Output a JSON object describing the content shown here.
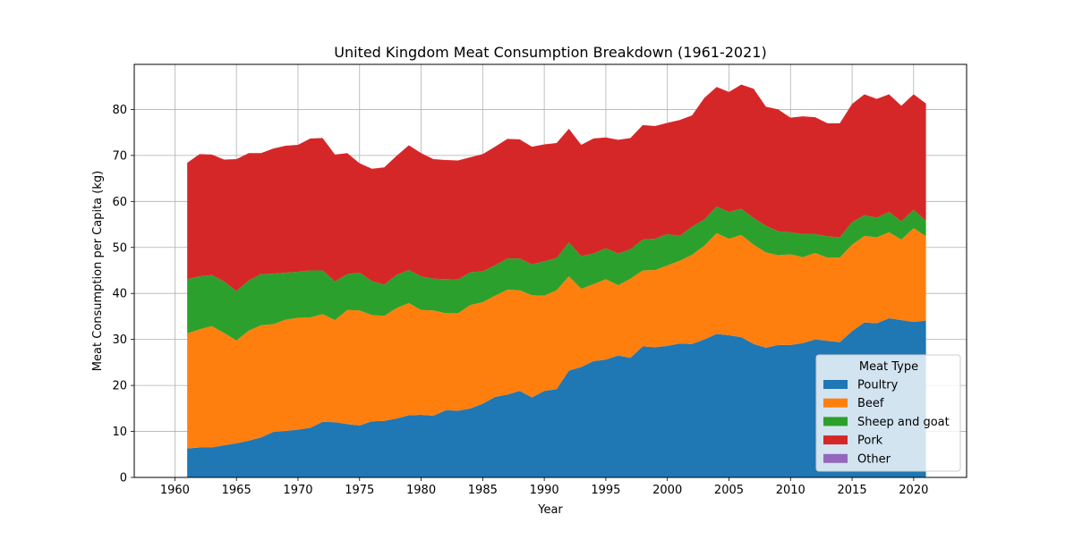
{
  "chart_data": {
    "type": "area",
    "stacked": true,
    "title": "United Kingdom Meat Consumption Breakdown (1961-2021)",
    "xlabel": "Year",
    "ylabel": "Meat Consumption per Capita (kg)",
    "xlim": [
      1956.7,
      2024.3
    ],
    "ylim": [
      0,
      89.8
    ],
    "xticks": [
      1960,
      1965,
      1970,
      1975,
      1980,
      1985,
      1990,
      1995,
      2000,
      2005,
      2010,
      2015,
      2020
    ],
    "yticks": [
      0,
      10,
      20,
      30,
      40,
      50,
      60,
      70,
      80
    ],
    "grid": true,
    "legend": {
      "title": "Meat Type",
      "placement": "lower-right"
    },
    "x": [
      1961,
      1962,
      1963,
      1964,
      1965,
      1966,
      1967,
      1968,
      1969,
      1970,
      1971,
      1972,
      1973,
      1974,
      1975,
      1976,
      1977,
      1978,
      1979,
      1980,
      1981,
      1982,
      1983,
      1984,
      1985,
      1986,
      1987,
      1988,
      1989,
      1990,
      1991,
      1992,
      1993,
      1994,
      1995,
      1996,
      1997,
      1998,
      1999,
      2000,
      2001,
      2002,
      2003,
      2004,
      2005,
      2006,
      2007,
      2008,
      2009,
      2010,
      2011,
      2012,
      2013,
      2014,
      2015,
      2016,
      2017,
      2018,
      2019,
      2020,
      2021
    ],
    "series": [
      {
        "name": "Poultry",
        "color": "#1f77b4",
        "values": [
          6.3,
          6.5,
          6.5,
          7.0,
          7.4,
          8.0,
          8.7,
          9.9,
          10.1,
          10.4,
          10.8,
          12.1,
          12.0,
          11.6,
          11.3,
          12.2,
          12.3,
          12.8,
          13.5,
          13.6,
          13.4,
          14.6,
          14.5,
          15.0,
          16.0,
          17.5,
          18.0,
          18.8,
          17.4,
          18.8,
          19.2,
          23.2,
          24.0,
          25.3,
          25.6,
          26.5,
          26.0,
          28.5,
          28.3,
          28.6,
          29.1,
          29.0,
          30.0,
          31.2,
          30.9,
          30.5,
          29.0,
          28.2,
          28.8,
          28.8,
          29.2,
          30.0,
          29.7,
          29.4,
          31.8,
          33.7,
          33.5,
          34.6,
          34.2,
          33.8,
          34.1
        ]
      },
      {
        "name": "Beef",
        "color": "#ff7f0e",
        "values": [
          25.0,
          25.7,
          26.4,
          24.4,
          22.4,
          23.9,
          24.4,
          23.4,
          24.2,
          24.3,
          24.0,
          23.4,
          22.2,
          24.8,
          25.0,
          23.1,
          22.8,
          24.0,
          24.4,
          22.8,
          22.9,
          21.1,
          21.2,
          22.5,
          22.1,
          22.0,
          22.8,
          21.9,
          22.2,
          20.7,
          21.5,
          20.5,
          17.0,
          16.7,
          17.5,
          15.3,
          17.2,
          16.5,
          16.8,
          17.5,
          18.0,
          19.4,
          20.4,
          21.9,
          21.0,
          22.2,
          21.6,
          20.7,
          19.5,
          19.7,
          18.7,
          18.8,
          18.1,
          18.4,
          18.8,
          18.8,
          18.7,
          18.7,
          17.5,
          20.4,
          18.3
        ]
      },
      {
        "name": "Sheep and goat",
        "color": "#2ca02c",
        "values": [
          11.8,
          11.5,
          11.1,
          11.2,
          10.7,
          10.9,
          11.1,
          11.0,
          10.2,
          10.0,
          10.2,
          9.5,
          8.4,
          7.8,
          8.2,
          7.4,
          6.8,
          7.2,
          7.2,
          7.3,
          6.9,
          7.4,
          7.3,
          7.1,
          6.7,
          6.6,
          6.8,
          6.9,
          6.7,
          7.5,
          7.0,
          7.4,
          7.1,
          6.7,
          6.7,
          6.9,
          6.4,
          6.7,
          6.8,
          6.8,
          5.4,
          6.1,
          5.7,
          5.8,
          5.8,
          5.7,
          5.8,
          5.8,
          5.2,
          4.8,
          5.0,
          4.1,
          4.6,
          4.4,
          4.9,
          4.5,
          4.3,
          4.4,
          4.0,
          4.0,
          3.4
        ]
      },
      {
        "name": "Pork",
        "color": "#d62728",
        "values": [
          25.3,
          26.6,
          26.2,
          26.5,
          28.7,
          27.7,
          26.3,
          27.2,
          27.6,
          27.6,
          28.7,
          28.8,
          27.6,
          26.3,
          23.8,
          24.4,
          25.5,
          25.9,
          27.1,
          26.8,
          26.0,
          25.9,
          25.9,
          25.0,
          25.5,
          25.8,
          26.0,
          25.9,
          25.6,
          25.4,
          25.0,
          24.7,
          24.2,
          25.0,
          24.1,
          24.7,
          24.2,
          24.9,
          24.5,
          24.2,
          25.2,
          24.2,
          26.4,
          26.0,
          26.1,
          27.0,
          28.1,
          25.9,
          26.5,
          24.9,
          25.6,
          25.4,
          24.6,
          24.8,
          25.7,
          26.3,
          25.8,
          25.6,
          25.1,
          25.1,
          25.5
        ]
      },
      {
        "name": "Other",
        "color": "#9467bd",
        "values": [
          0,
          0,
          0,
          0,
          0,
          0,
          0,
          0,
          0,
          0,
          0,
          0,
          0,
          0,
          0,
          0,
          0,
          0,
          0,
          0,
          0,
          0,
          0,
          0,
          0,
          0,
          0,
          0,
          0,
          0,
          0,
          0,
          0,
          0,
          0,
          0,
          0,
          0,
          0,
          0,
          0,
          0,
          0,
          0,
          0,
          0,
          0,
          0,
          0,
          0,
          0,
          0,
          0,
          0,
          0,
          0,
          0,
          0,
          0,
          0,
          0
        ]
      }
    ]
  }
}
